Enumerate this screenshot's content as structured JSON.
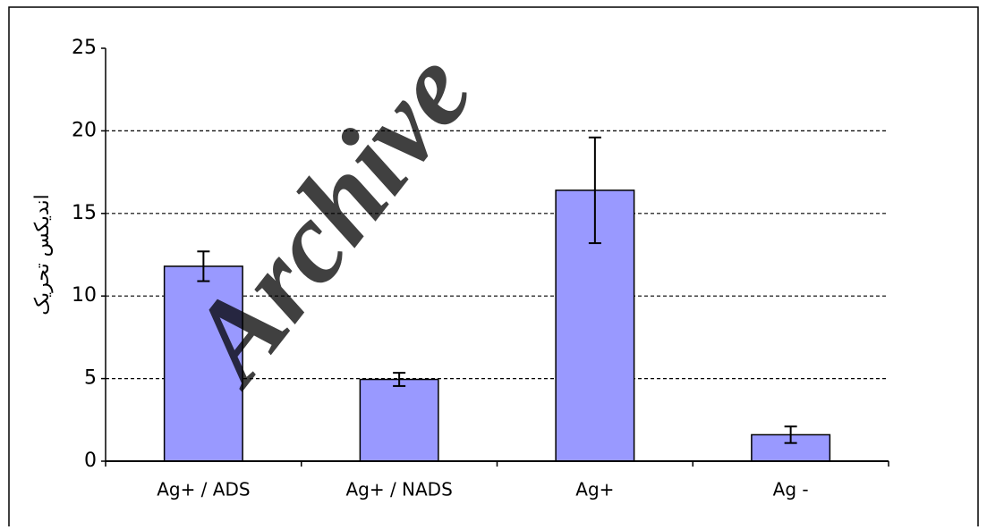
{
  "chart_data": {
    "type": "bar",
    "ylabel": "اندیکس تحریک",
    "categories": [
      "Ag+ / ADS",
      "Ag+ / NADS",
      "Ag+",
      "Ag -"
    ],
    "values": [
      11.8,
      4.95,
      16.4,
      1.6
    ],
    "errors": [
      0.9,
      0.4,
      3.2,
      0.5
    ],
    "color": "#9999ff",
    "ylim": [
      0,
      25
    ],
    "yticks": [
      0,
      5,
      10,
      15,
      20,
      25
    ],
    "grid": true,
    "watermark": "Archive"
  }
}
